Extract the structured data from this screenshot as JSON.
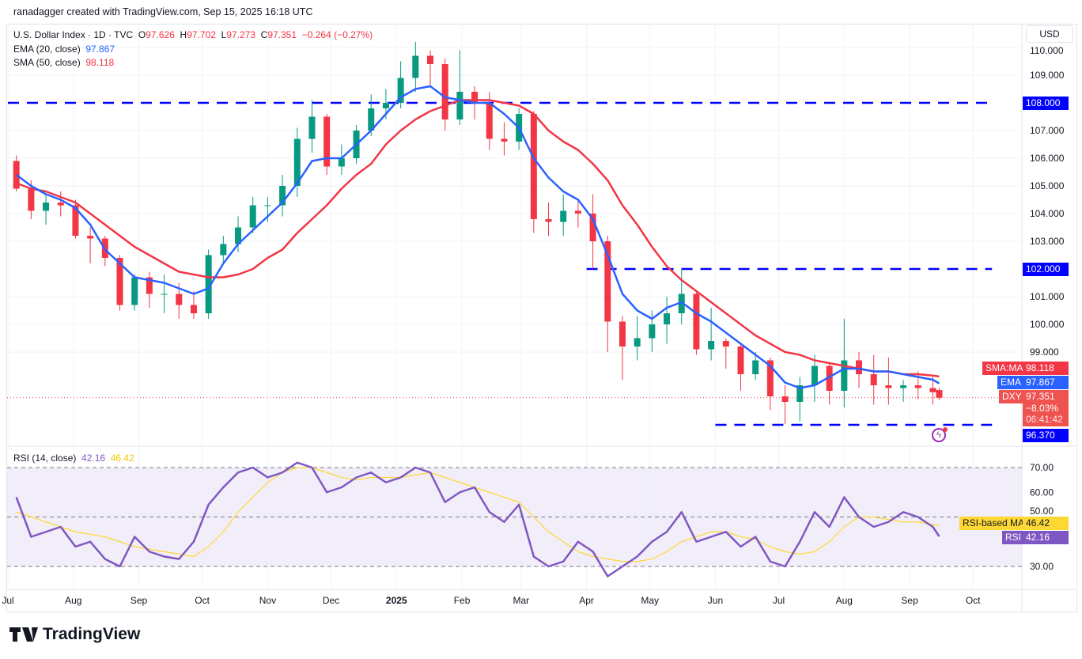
{
  "credit": "ranadagger created with TradingView.com, Sep 15, 2025 16:18 UTC",
  "legend": {
    "symbol": "U.S. Dollar Index · 1D · TVC",
    "open_label": "O",
    "open": "97.626",
    "high_label": "H",
    "high": "97.702",
    "low_label": "L",
    "low": "97.273",
    "close_label": "C",
    "close": "97.351",
    "change": "−0.264 (−0.27%)",
    "ema_label": "EMA (20, close)",
    "ema_value": "97.867",
    "sma_label": "SMA (50, close)",
    "sma_value": "98.118",
    "rsi_label": "RSI (14, close)",
    "rsi_value": "42.16",
    "rsi_ma_value": "46.42"
  },
  "currency_button": "USD",
  "logo_text": "TradingView",
  "colors": {
    "up": "#089981",
    "down": "#f23645",
    "ema": "#2962ff",
    "sma": "#f23645",
    "level": "#0000ff",
    "rsi": "#7e57c2",
    "rsi_ma": "#fdd835",
    "rsi_band": "#ede7f6"
  },
  "price_tags": {
    "sma_name": "SMA:MA",
    "sma": "98.118",
    "ema_name": "EMA",
    "ema": "97.867",
    "symbol_name": "DXY",
    "price": "97.351",
    "pct": "−8.03%",
    "countdown": "06:41:42",
    "level_low": "96.370",
    "level_mid": "102.000",
    "level_high": "108.000",
    "rsi_ma_name": "RSI-based MA",
    "rsi_ma": "46.42",
    "rsi_name": "RSI",
    "rsi": "42.16"
  },
  "chart_data": {
    "type": "candlestick",
    "title": "U.S. Dollar Index · 1D · TVC",
    "ylim": [
      95.7,
      110.3
    ],
    "y_ticks": [
      "110.000",
      "109.000",
      "107.000",
      "106.000",
      "105.000",
      "104.000",
      "103.000",
      "101.000",
      "100.000",
      "99.000"
    ],
    "y_tick_values": [
      110,
      109,
      107,
      106,
      105,
      104,
      103,
      101,
      100,
      99
    ],
    "x_ticks": [
      {
        "label": "Jul",
        "date": "2024-07-01"
      },
      {
        "label": "Aug",
        "date": "2024-08-01"
      },
      {
        "label": "Sep",
        "date": "2024-09-01"
      },
      {
        "label": "Oct",
        "date": "2024-10-01"
      },
      {
        "label": "Nov",
        "date": "2024-11-01"
      },
      {
        "label": "Dec",
        "date": "2024-12-01"
      },
      {
        "label": "2025",
        "date": "2025-01-01",
        "bold": true
      },
      {
        "label": "Feb",
        "date": "2025-02-01"
      },
      {
        "label": "Mar",
        "date": "2025-03-01"
      },
      {
        "label": "Apr",
        "date": "2025-04-01"
      },
      {
        "label": "May",
        "date": "2025-05-01"
      },
      {
        "label": "Jun",
        "date": "2025-06-01"
      },
      {
        "label": "Jul",
        "date": "2025-07-01"
      },
      {
        "label": "Aug",
        "date": "2025-08-01"
      },
      {
        "label": "Sep",
        "date": "2025-09-01"
      },
      {
        "label": "Oct",
        "date": "2025-10-01"
      }
    ],
    "horizontal_levels": [
      {
        "value": 108.0,
        "from": "2024-07-01",
        "to": "2025-10-10"
      },
      {
        "value": 102.0,
        "from": "2025-04-01",
        "to": "2025-10-10"
      },
      {
        "value": 96.37,
        "from": "2025-06-01",
        "to": "2025-10-10"
      }
    ],
    "dates": [
      "2024-07-05",
      "2024-07-12",
      "2024-07-19",
      "2024-07-26",
      "2024-08-02",
      "2024-08-09",
      "2024-08-16",
      "2024-08-23",
      "2024-08-30",
      "2024-09-06",
      "2024-09-13",
      "2024-09-20",
      "2024-09-27",
      "2024-10-04",
      "2024-10-11",
      "2024-10-18",
      "2024-10-25",
      "2024-11-01",
      "2024-11-08",
      "2024-11-15",
      "2024-11-22",
      "2024-11-29",
      "2024-12-06",
      "2024-12-13",
      "2024-12-20",
      "2024-12-27",
      "2025-01-03",
      "2025-01-10",
      "2025-01-17",
      "2025-01-24",
      "2025-01-31",
      "2025-02-07",
      "2025-02-14",
      "2025-02-21",
      "2025-02-28",
      "2025-03-07",
      "2025-03-14",
      "2025-03-21",
      "2025-03-28",
      "2025-04-04",
      "2025-04-11",
      "2025-04-18",
      "2025-04-25",
      "2025-05-02",
      "2025-05-09",
      "2025-05-16",
      "2025-05-23",
      "2025-05-30",
      "2025-06-06",
      "2025-06-13",
      "2025-06-20",
      "2025-06-27",
      "2025-07-04",
      "2025-07-11",
      "2025-07-18",
      "2025-07-25",
      "2025-08-01",
      "2025-08-08",
      "2025-08-15",
      "2025-08-22",
      "2025-08-29",
      "2025-09-05",
      "2025-09-12",
      "2025-09-15"
    ],
    "open": [
      105.9,
      104.9,
      104.1,
      104.4,
      104.3,
      103.2,
      103.1,
      102.4,
      100.7,
      101.7,
      101.1,
      101.1,
      100.7,
      100.4,
      102.5,
      102.9,
      103.5,
      104.3,
      104.3,
      105.0,
      106.7,
      107.5,
      105.7,
      106.0,
      107.0,
      107.8,
      108.0,
      108.9,
      109.7,
      109.4,
      107.4,
      108.4,
      108.0,
      106.7,
      106.6,
      107.6,
      103.8,
      103.7,
      104.1,
      104.0,
      103.0,
      100.1,
      99.2,
      99.5,
      100.0,
      100.4,
      101.1,
      99.1,
      99.4,
      99.2,
      98.2,
      98.7,
      97.4,
      97.2,
      97.8,
      98.5,
      97.6,
      98.7,
      98.2,
      97.8,
      97.7,
      97.8,
      97.7,
      97.626
    ],
    "high": [
      106.1,
      105.2,
      104.7,
      104.8,
      104.5,
      103.5,
      103.2,
      102.5,
      101.8,
      101.9,
      101.8,
      101.5,
      101.2,
      102.7,
      103.2,
      103.9,
      104.6,
      104.6,
      105.4,
      107.1,
      108.1,
      107.6,
      106.5,
      107.2,
      108.3,
      108.5,
      109.5,
      110.2,
      109.9,
      109.6,
      109.9,
      108.6,
      108.4,
      107.3,
      107.8,
      107.7,
      104.4,
      104.7,
      104.5,
      104.7,
      103.2,
      100.3,
      100.3,
      100.5,
      101.0,
      102.0,
      101.2,
      100.6,
      99.5,
      99.3,
      99.0,
      98.8,
      97.8,
      98.1,
      98.9,
      98.6,
      100.2,
      99.0,
      98.9,
      98.8,
      98.0,
      98.3,
      98.1,
      97.702
    ],
    "low": [
      104.8,
      103.8,
      103.6,
      103.9,
      103.1,
      102.2,
      102.1,
      100.5,
      100.5,
      100.6,
      100.4,
      100.2,
      100.2,
      100.2,
      102.2,
      102.6,
      103.3,
      103.7,
      103.9,
      104.6,
      106.2,
      105.4,
      105.4,
      105.8,
      106.8,
      107.4,
      107.8,
      108.4,
      108.6,
      107.0,
      107.2,
      107.4,
      106.3,
      106.1,
      106.3,
      103.3,
      103.2,
      103.2,
      103.5,
      102.0,
      99.0,
      98.0,
      98.7,
      99.0,
      99.3,
      100.0,
      98.9,
      98.7,
      98.4,
      97.6,
      98.0,
      96.9,
      96.4,
      96.5,
      97.2,
      97.1,
      97.0,
      97.7,
      97.1,
      97.1,
      97.2,
      97.3,
      97.1,
      97.273
    ],
    "close": [
      104.9,
      104.1,
      104.4,
      104.3,
      103.2,
      103.1,
      102.4,
      100.7,
      101.7,
      101.1,
      101.1,
      100.7,
      100.4,
      102.5,
      102.9,
      103.5,
      104.3,
      104.3,
      105.0,
      106.7,
      107.5,
      105.7,
      106.0,
      107.0,
      107.8,
      108.0,
      108.9,
      109.7,
      109.4,
      107.4,
      108.4,
      108.0,
      106.7,
      106.6,
      107.6,
      103.8,
      103.7,
      104.1,
      104.0,
      103.0,
      100.1,
      99.2,
      99.5,
      100.0,
      100.4,
      101.1,
      99.1,
      99.4,
      99.2,
      98.2,
      98.7,
      97.4,
      97.2,
      97.8,
      98.5,
      97.6,
      98.7,
      98.2,
      97.8,
      97.7,
      97.8,
      97.7,
      97.55,
      97.351
    ],
    "series": [
      {
        "name": "EMA (20, close)",
        "values": [
          105.4,
          105.0,
          104.7,
          104.5,
          104.2,
          103.6,
          102.7,
          102.2,
          101.7,
          101.6,
          101.5,
          101.3,
          101.1,
          101.3,
          102.2,
          102.9,
          103.4,
          103.9,
          104.4,
          105.1,
          105.9,
          106.0,
          106.0,
          106.5,
          107.0,
          107.6,
          108.2,
          108.5,
          108.6,
          108.2,
          108.1,
          108.0,
          108.0,
          107.6,
          107.1,
          106.0,
          105.3,
          104.8,
          104.5,
          103.8,
          102.5,
          101.1,
          100.5,
          100.2,
          100.6,
          100.8,
          100.4,
          100.1,
          99.7,
          99.3,
          98.9,
          98.5,
          97.9,
          97.7,
          97.8,
          98.1,
          98.4,
          98.4,
          98.3,
          98.3,
          98.2,
          98.1,
          98.0,
          97.867
        ]
      },
      {
        "name": "SMA (50, close)",
        "values": [
          105.1,
          104.9,
          104.8,
          104.6,
          104.4,
          104.0,
          103.6,
          103.2,
          102.8,
          102.5,
          102.2,
          101.9,
          101.8,
          101.7,
          101.7,
          101.8,
          102.0,
          102.4,
          102.7,
          103.3,
          103.8,
          104.3,
          104.9,
          105.4,
          105.8,
          106.5,
          107.0,
          107.4,
          107.7,
          107.9,
          108.1,
          108.1,
          108.1,
          108.0,
          107.9,
          107.6,
          107.0,
          106.6,
          106.3,
          105.8,
          105.2,
          104.3,
          103.6,
          102.8,
          102.1,
          101.6,
          101.2,
          100.8,
          100.4,
          100.0,
          99.6,
          99.3,
          99.0,
          98.9,
          98.7,
          98.6,
          98.5,
          98.4,
          98.3,
          98.3,
          98.2,
          98.2,
          98.15,
          98.118
        ]
      }
    ],
    "rsi": {
      "ylim": [
        22,
        78
      ],
      "y_ticks": [
        "70.00",
        "60.00",
        "50.00",
        "30.00"
      ],
      "y_tick_values": [
        70,
        60,
        50,
        30
      ],
      "band": [
        30,
        70
      ],
      "series": [
        {
          "name": "RSI",
          "values": [
            58,
            42,
            44,
            46,
            38,
            40,
            33,
            30,
            42,
            36,
            34,
            33,
            40,
            55,
            62,
            68,
            70,
            66,
            68,
            72,
            70,
            60,
            62,
            66,
            68,
            64,
            66,
            70,
            68,
            56,
            60,
            62,
            52,
            48,
            55,
            34,
            30,
            32,
            40,
            36,
            26,
            30,
            34,
            40,
            44,
            52,
            40,
            42,
            44,
            38,
            42,
            32,
            30,
            40,
            52,
            46,
            58,
            50,
            46,
            48,
            52,
            50,
            46,
            42.16
          ]
        },
        {
          "name": "RSI-based MA",
          "values": [
            52,
            50,
            48,
            46,
            44,
            43,
            42,
            40,
            38,
            37,
            36,
            35,
            34,
            38,
            44,
            52,
            58,
            64,
            68,
            70,
            70,
            68,
            66,
            65,
            66,
            66,
            66,
            67,
            68,
            66,
            64,
            62,
            60,
            58,
            56,
            50,
            44,
            40,
            36,
            34,
            33,
            32,
            32,
            33,
            36,
            40,
            42,
            44,
            44,
            42,
            41,
            38,
            36,
            35,
            36,
            40,
            46,
            50,
            50,
            49,
            48,
            48,
            47,
            46.42
          ]
        }
      ]
    }
  }
}
